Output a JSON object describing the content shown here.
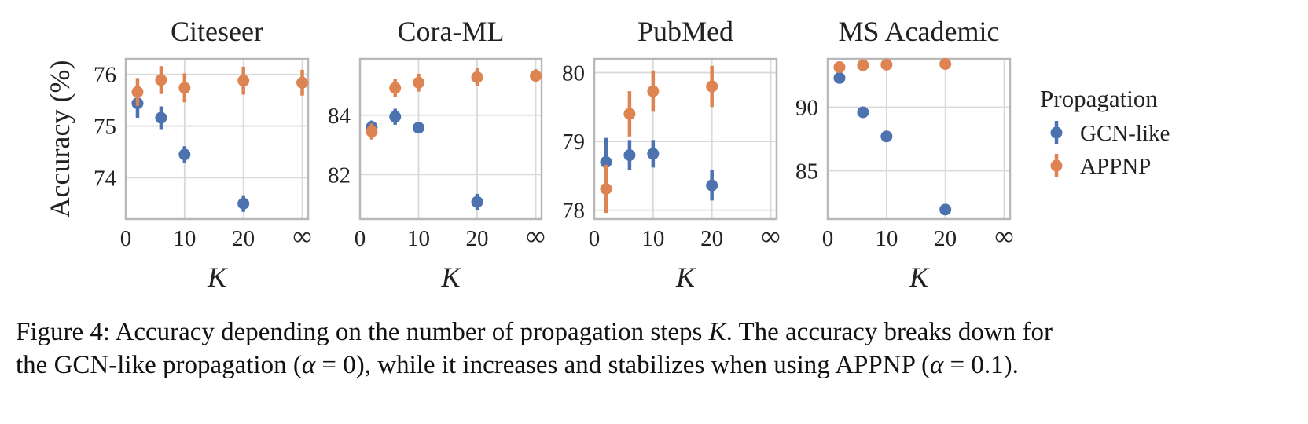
{
  "chart_data": {
    "type": "scatter",
    "subtype": "errorbar",
    "x_tick_labels": [
      "0",
      "10",
      "20",
      "∞"
    ],
    "x_tick_values": [
      0,
      10,
      20,
      30
    ],
    "x_label": "K",
    "y_label": "Accuracy (%)",
    "legend": {
      "title": "Propagation",
      "position": "right",
      "entries": [
        {
          "name": "GCN-like",
          "color": "#4c72b0"
        },
        {
          "name": "APPNP",
          "color": "#dd8452"
        }
      ]
    },
    "panels": [
      {
        "title": "Citeseer",
        "ylim": [
          73.2,
          76.3
        ],
        "yticks": [
          74,
          75,
          76
        ],
        "series": [
          {
            "name": "GCN-like",
            "color": "#4c72b0",
            "points": [
              {
                "x": 2,
                "y": 75.44,
                "err": 0.28
              },
              {
                "x": 6,
                "y": 75.16,
                "err": 0.22
              },
              {
                "x": 10,
                "y": 74.45,
                "err": 0.16
              },
              {
                "x": 20,
                "y": 73.5,
                "err": 0.16
              }
            ]
          },
          {
            "name": "APPNP",
            "color": "#dd8452",
            "points": [
              {
                "x": 2,
                "y": 75.66,
                "err": 0.27
              },
              {
                "x": 6,
                "y": 75.89,
                "err": 0.27
              },
              {
                "x": 10,
                "y": 75.74,
                "err": 0.28
              },
              {
                "x": 20,
                "y": 75.88,
                "err": 0.27
              },
              {
                "x": 30,
                "y": 75.84,
                "err": 0.25
              }
            ]
          }
        ]
      },
      {
        "title": "Cora-ML",
        "ylim": [
          80.5,
          85.9
        ],
        "yticks": [
          82,
          84
        ],
        "series": [
          {
            "name": "GCN-like",
            "color": "#4c72b0",
            "points": [
              {
                "x": 2,
                "y": 83.6,
                "err": 0.22
              },
              {
                "x": 6,
                "y": 83.95,
                "err": 0.27
              },
              {
                "x": 10,
                "y": 83.58,
                "err": 0.15
              },
              {
                "x": 20,
                "y": 81.08,
                "err": 0.27
              }
            ]
          },
          {
            "name": "APPNP",
            "color": "#dd8452",
            "points": [
              {
                "x": 2,
                "y": 83.45,
                "err": 0.27
              },
              {
                "x": 6,
                "y": 84.92,
                "err": 0.3
              },
              {
                "x": 10,
                "y": 85.1,
                "err": 0.3
              },
              {
                "x": 20,
                "y": 85.28,
                "err": 0.3
              },
              {
                "x": 30,
                "y": 85.33,
                "err": 0.22
              }
            ]
          }
        ]
      },
      {
        "title": "PubMed",
        "ylim": [
          77.87,
          80.2
        ],
        "yticks": [
          78,
          79,
          80
        ],
        "series": [
          {
            "name": "GCN-like",
            "color": "#4c72b0",
            "points": [
              {
                "x": 2,
                "y": 78.7,
                "err": 0.35
              },
              {
                "x": 6,
                "y": 78.8,
                "err": 0.22
              },
              {
                "x": 10,
                "y": 78.82,
                "err": 0.2
              },
              {
                "x": 20,
                "y": 78.36,
                "err": 0.22
              }
            ]
          },
          {
            "name": "APPNP",
            "color": "#dd8452",
            "points": [
              {
                "x": 2,
                "y": 78.31,
                "err": 0.35
              },
              {
                "x": 6,
                "y": 79.4,
                "err": 0.33
              },
              {
                "x": 10,
                "y": 79.73,
                "err": 0.3
              },
              {
                "x": 20,
                "y": 79.8,
                "err": 0.3
              }
            ]
          }
        ]
      },
      {
        "title": "MS Academic",
        "ylim": [
          81.2,
          93.8
        ],
        "yticks": [
          85,
          90
        ],
        "series": [
          {
            "name": "GCN-like",
            "color": "#4c72b0",
            "points": [
              {
                "x": 2,
                "y": 92.3,
                "err": 0.2
              },
              {
                "x": 6,
                "y": 89.6,
                "err": 0.2
              },
              {
                "x": 10,
                "y": 87.7,
                "err": 0.2
              },
              {
                "x": 20,
                "y": 81.95,
                "err": 0.2
              }
            ]
          },
          {
            "name": "APPNP",
            "color": "#dd8452",
            "points": [
              {
                "x": 2,
                "y": 93.15,
                "err": 0.2
              },
              {
                "x": 6,
                "y": 93.3,
                "err": 0.2
              },
              {
                "x": 10,
                "y": 93.35,
                "err": 0.2
              },
              {
                "x": 20,
                "y": 93.4,
                "err": 0.2
              }
            ]
          }
        ]
      }
    ]
  },
  "caption": {
    "line1": {
      "a": "Figure 4: Accuracy depending on the number of propagation steps ",
      "k": "K",
      "b": ". The accuracy breaks down for"
    },
    "line2": {
      "a": "the GCN-like propagation (",
      "alpha1": "α",
      "b": " = 0), while it increases and stabilizes when using APPNP (",
      "alpha2": "α",
      "c": " = 0.1)."
    }
  }
}
